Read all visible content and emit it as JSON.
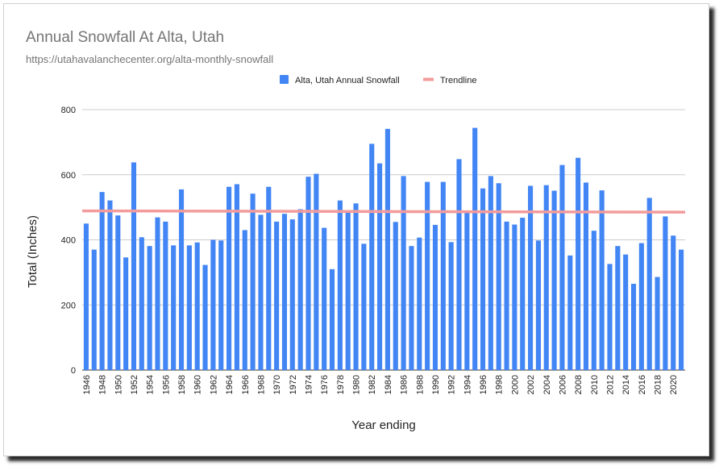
{
  "chart_data": {
    "type": "bar",
    "title": "Annual Snowfall At Alta, Utah",
    "subtitle": "https://utahavalanchecenter.org/alta-monthly-snowfall",
    "xlabel": "Year ending",
    "ylabel": "Total (Inches)",
    "ylim": [
      0,
      800
    ],
    "yticks": [
      "0",
      "200",
      "400",
      "600",
      "800"
    ],
    "grid": true,
    "legend_position": "top",
    "series": [
      {
        "name": "Alta, Utah Annual Snowfall",
        "color": "#4285f4",
        "values": [
          450,
          370,
          547,
          521,
          475,
          346,
          638,
          408,
          381,
          469,
          456,
          383,
          555,
          383,
          392,
          323,
          400,
          398,
          563,
          571,
          430,
          542,
          477,
          563,
          456,
          480,
          463,
          494,
          594,
          603,
          437,
          310,
          521,
          489,
          512,
          388,
          695,
          635,
          741,
          455,
          596,
          381,
          407,
          578,
          446,
          578,
          393,
          648,
          488,
          744,
          558,
          596,
          574,
          456,
          447,
          468,
          566,
          398,
          568,
          551,
          630,
          352,
          652,
          576,
          428,
          552,
          326,
          381,
          355,
          265,
          390,
          529,
          286,
          472,
          413,
          370
        ]
      },
      {
        "name": "Trendline",
        "color": "#f39b9b",
        "type": "line",
        "start": 489,
        "end": 485
      }
    ],
    "year_first": 1946,
    "year_last": 2021,
    "x_tick_labels": [
      "1946",
      "1948",
      "1950",
      "1952",
      "1954",
      "1956",
      "1958",
      "1960",
      "1962",
      "1964",
      "1966",
      "1968",
      "1970",
      "1972",
      "1974",
      "1976",
      "1978",
      "1980",
      "1982",
      "1984",
      "1986",
      "1988",
      "1990",
      "1992",
      "1994",
      "1996",
      "1998",
      "2000",
      "2002",
      "2004",
      "2006",
      "2008",
      "2010",
      "2012",
      "2014",
      "2016",
      "2018",
      "2020"
    ]
  }
}
